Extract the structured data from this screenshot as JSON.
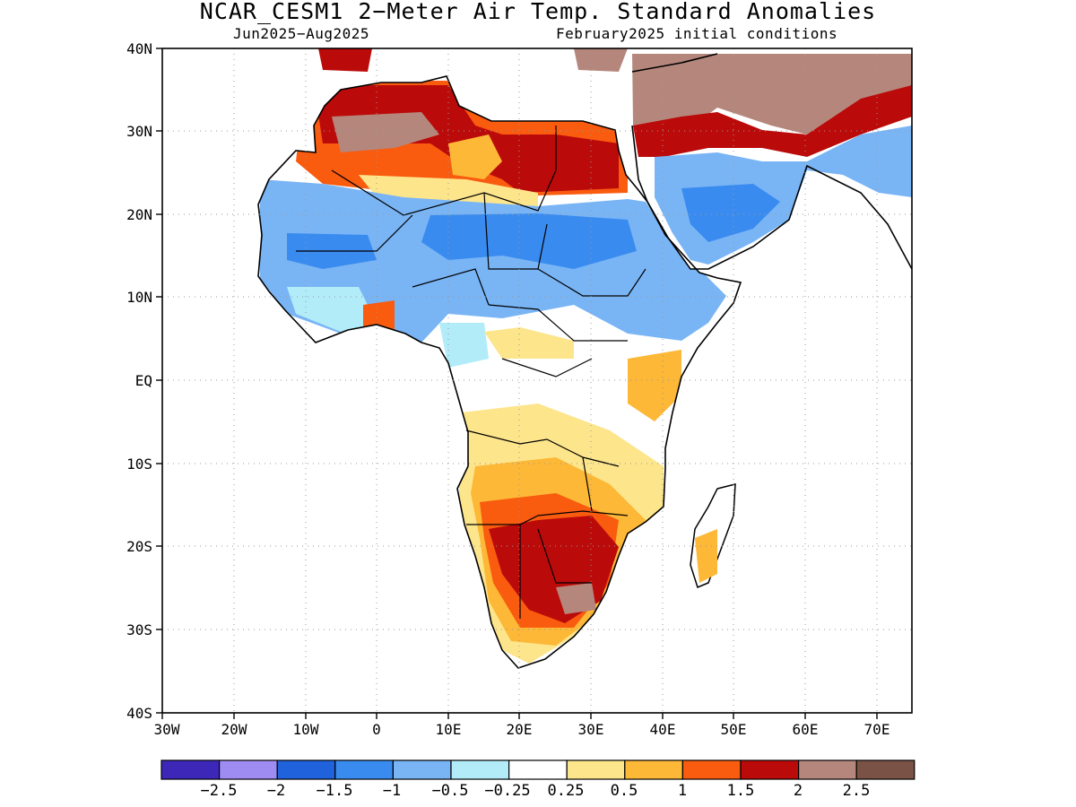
{
  "title": "NCAR_CESM1 2−Meter Air Temp. Standard Anomalies",
  "subtitle_left": "Jun2025−Aug2025",
  "subtitle_right": "February2025 initial conditions",
  "lat_labels": [
    "40N",
    "30N",
    "20N",
    "10N",
    "EQ",
    "10S",
    "20S",
    "30S",
    "40S"
  ],
  "lon_labels": [
    "30W",
    "20W",
    "10W",
    "0",
    "10E",
    "20E",
    "30E",
    "40E",
    "50E",
    "60E",
    "70E"
  ],
  "colorbar": {
    "colors": [
      "#3d27b9",
      "#9e8cf2",
      "#1f62dc",
      "#3a8bef",
      "#79b5f5",
      "#b2ecf9",
      "#ffffff",
      "#fde58c",
      "#fcb836",
      "#f95b0f",
      "#bb0a0a",
      "#b5877c",
      "#7a5246"
    ],
    "labels": [
      "−2.5",
      "−2",
      "−1.5",
      "−1",
      "−0.5",
      "−0.25",
      "0.25",
      "0.5",
      "1",
      "1.5",
      "2",
      "2.5"
    ]
  }
}
